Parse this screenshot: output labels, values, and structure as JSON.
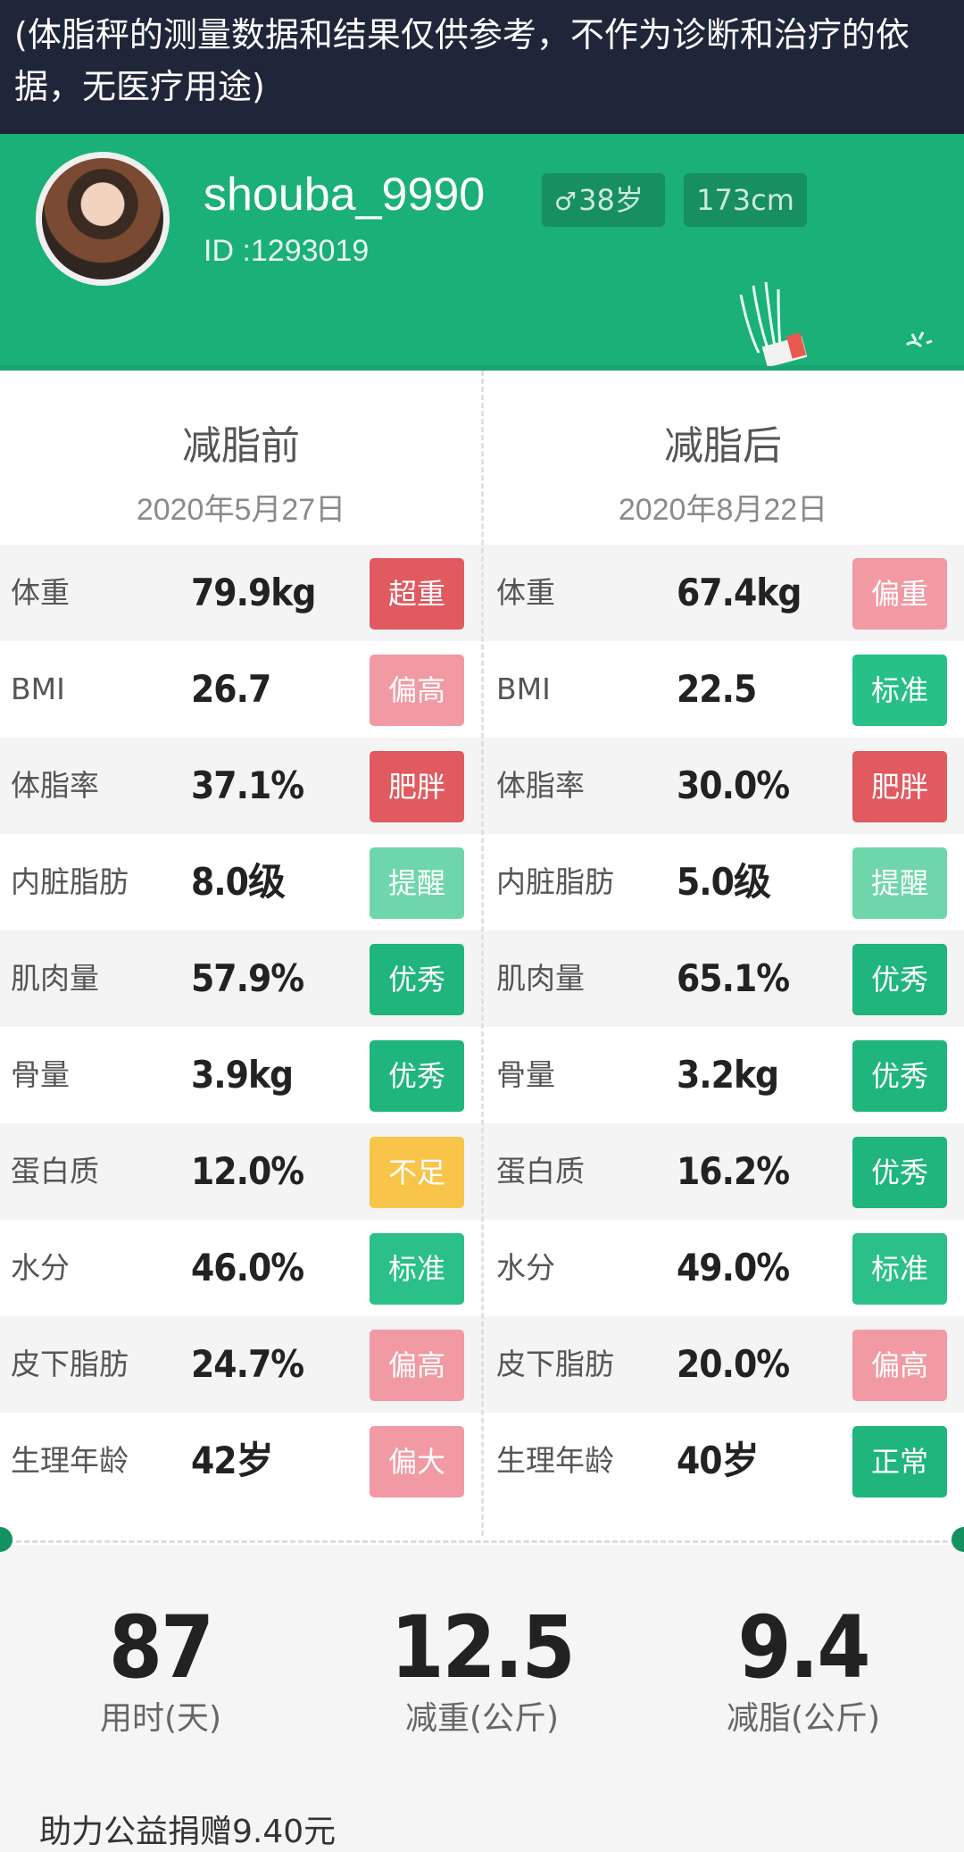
{
  "disclaimer": "(体脂秤的测量数据和结果仅供参考，不作为诊断和治疗的依据，无医疗用途)",
  "profile": {
    "username": "shouba_9990",
    "id": "ID :1293019",
    "gender_icon": "♂",
    "age": "38岁",
    "height": "173cm"
  },
  "before": {
    "title": "减脂前",
    "date": "2020年5月27日"
  },
  "after": {
    "title": "减脂后",
    "date": "2020年8月22日"
  },
  "metrics": [
    {
      "label": "体重",
      "before_value": "79.9kg",
      "before_status": "超重",
      "before_color": "#e05a5f",
      "after_value": "67.4kg",
      "after_status": "偏重",
      "after_color": "#f19aa4"
    },
    {
      "label": "BMI",
      "before_value": "26.7",
      "before_status": "偏高",
      "before_color": "#f19aa4",
      "after_value": "22.5",
      "after_status": "标准",
      "after_color": "#27c087"
    },
    {
      "label": "体脂率",
      "before_value": "37.1%",
      "before_status": "肥胖",
      "before_color": "#e05a5f",
      "after_value": "30.0%",
      "after_status": "肥胖",
      "after_color": "#e05a5f"
    },
    {
      "label": "内脏脂肪",
      "before_value": "8.0级",
      "before_status": "提醒",
      "before_color": "#6fd6ab",
      "after_value": "5.0级",
      "after_status": "提醒",
      "after_color": "#6fd6ab"
    },
    {
      "label": "肌肉量",
      "before_value": "57.9%",
      "before_status": "优秀",
      "before_color": "#1fb57d",
      "after_value": "65.1%",
      "after_status": "优秀",
      "after_color": "#1fb57d"
    },
    {
      "label": "骨量",
      "before_value": "3.9kg",
      "before_status": "优秀",
      "before_color": "#1fb57d",
      "after_value": "3.2kg",
      "after_status": "优秀",
      "after_color": "#1fb57d"
    },
    {
      "label": "蛋白质",
      "before_value": "12.0%",
      "before_status": "不足",
      "before_color": "#f8c44a",
      "after_value": "16.2%",
      "after_status": "优秀",
      "after_color": "#1fb57d"
    },
    {
      "label": "水分",
      "before_value": "46.0%",
      "before_status": "标准",
      "before_color": "#2bc08a",
      "after_value": "49.0%",
      "after_status": "标准",
      "after_color": "#2bc08a"
    },
    {
      "label": "皮下脂肪",
      "before_value": "24.7%",
      "before_status": "偏高",
      "before_color": "#f19aa4",
      "after_value": "20.0%",
      "after_status": "偏高",
      "after_color": "#f19aa4"
    },
    {
      "label": "生理年龄",
      "before_value": "42岁",
      "before_status": "偏大",
      "before_color": "#f19aa4",
      "after_value": "40岁",
      "after_status": "正常",
      "after_color": "#1fb57d"
    }
  ],
  "stats": [
    {
      "value": "87",
      "caption": "用时(天)"
    },
    {
      "value": "12.5",
      "caption": "减重(公斤)"
    },
    {
      "value": "9.4",
      "caption": "减脂(公斤)"
    }
  ],
  "donation": "助力公益捐赠9.40元",
  "colors": {
    "brand_green": "#1bb078",
    "header_dark": "#20263a"
  }
}
